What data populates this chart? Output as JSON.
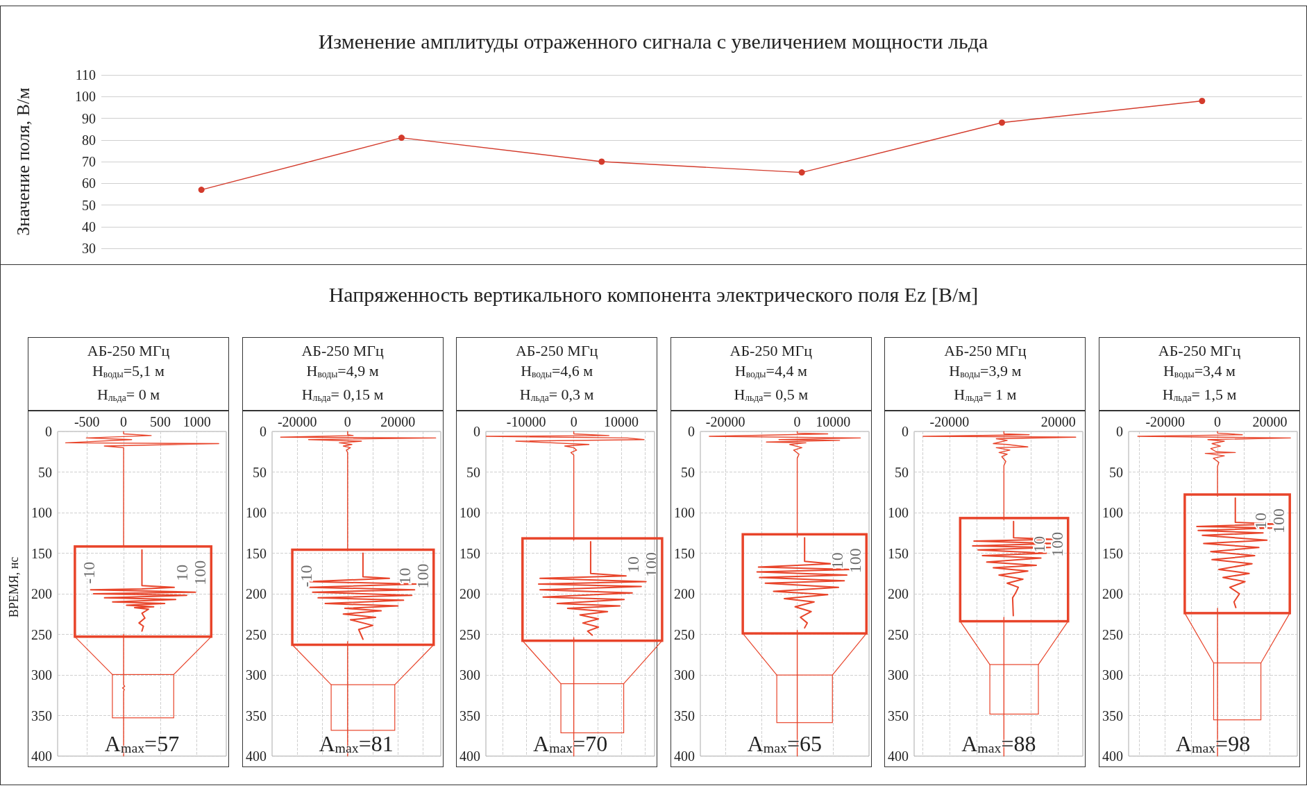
{
  "chart_data": [
    {
      "type": "line",
      "title": "Изменение амплитуды отраженного сигнала с увеличением мощности льда",
      "ylabel": "Значение поля, В/м",
      "categories": [
        null,
        null,
        null,
        null,
        null,
        null
      ],
      "series": [
        {
          "color": "#d33b2c",
          "values": [
            57,
            81,
            70,
            65,
            88,
            98
          ]
        }
      ],
      "ylim": [
        30,
        110
      ],
      "yticks": [
        30,
        40,
        50,
        60,
        70,
        80,
        90,
        100,
        110
      ],
      "grid": "y",
      "marker": "circle",
      "tick_labels": "y"
    },
    {
      "type": "other",
      "title": "Напряженность вертикального компонента электрического поля Ez [В/м]"
    },
    {
      "type": "line",
      "title": "АБ-250 МГц",
      "subtitle": "Н$_{воды}$=5,1 м\nН$_{льда}$= 0 м",
      "ylabel": "ВРЕМЯ, нс",
      "series": [
        {
          "color": "#e8442a",
          "x": [
            0,
            0,
            376,
            -508,
            110,
            -790,
            1297,
            -263,
            0,
            0,
            null,
            0,
            0,
            15,
            -15,
            10,
            0,
            0
          ],
          "values": [
            0,
            3,
            5,
            8,
            10,
            14,
            15,
            18,
            20,
            142,
            null,
            250,
            312,
            314,
            316,
            318,
            320,
            400
          ]
        },
        {
          "color": "#e8442a",
          "x": [
            250,
            250,
            690,
            250,
            -450,
            980,
            -410,
            860,
            -260,
            710,
            -150,
            560,
            40,
            410,
            150,
            340,
            250,
            290,
            210,
            270,
            250
          ],
          "values": [
            146,
            190,
            192,
            194,
            195,
            198,
            200,
            202,
            205,
            207,
            210,
            212,
            214,
            216,
            217,
            219,
            224,
            230,
            236,
            240,
            246
          ]
        }
      ],
      "xlim": [
        -900,
        1400
      ],
      "xticks": [
        -500,
        0,
        500,
        1000
      ],
      "ylim": [
        400,
        0
      ],
      "yticks": [
        0,
        50,
        100,
        150,
        200,
        250,
        300,
        350,
        400
      ],
      "grid": true,
      "marker": "none",
      "annotations": [
        "-10",
        "10",
        "100",
        "A$_{max}$=57"
      ]
    },
    {
      "type": "line",
      "title": "АБ-250 МГц",
      "subtitle": "Н$_{воды}$=4,9 м\nН$_{льда}$= 0,15 м",
      "series": [
        {
          "color": "#e8442a",
          "x": [
            0,
            0,
            2200,
            -26600,
            35000,
            -15500,
            5500,
            -3300,
            1700,
            -1700,
            1100,
            -500,
            0,
            0,
            null,
            0,
            0
          ],
          "values": [
            0,
            4,
            5,
            7,
            8,
            10,
            12,
            14,
            16,
            18,
            20,
            23,
            26,
            147,
            null,
            259,
            400
          ]
        },
        {
          "color": "#e8442a",
          "x": [
            6100,
            6100,
            16600,
            -15500,
            27700,
            -15500,
            26600,
            -13900,
            25500,
            -11700,
            22200,
            -8900,
            20000,
            -1100,
            13300,
            -1700,
            11100,
            1100,
            10000,
            4400,
            6100
          ],
          "values": [
            150,
            179,
            181,
            185,
            188,
            192,
            195,
            198,
            202,
            205,
            208,
            212,
            215,
            218,
            221,
            225,
            229,
            232,
            239,
            244,
            256
          ]
        }
      ],
      "xlim": [
        -30000,
        37000
      ],
      "xticks": [
        -20000,
        {
          "value": -10000,
          "label": null
        },
        0,
        {
          "value": 10000,
          "label": null
        },
        20000,
        {
          "value": 30000,
          "label": null
        }
      ],
      "ylim": [
        400,
        0
      ],
      "yticks": [
        0,
        50,
        100,
        150,
        200,
        250,
        300,
        350,
        400
      ],
      "grid": true,
      "marker": "none",
      "annotations": [
        "-10",
        "10",
        "100",
        "A$_{max}$=81"
      ]
    },
    {
      "type": "line",
      "title": "АБ-250 МГц",
      "subtitle": "Н$_{воды}$=4,6 м\nН$_{льда}$= 0,3 м",
      "series": [
        {
          "color": "#e8442a",
          "x": [
            0,
            0,
            7400,
            -18400,
            11300,
            14800,
            -12200,
            3200,
            -1900,
            0,
            600,
            -600,
            0,
            0,
            null,
            0,
            0
          ],
          "values": [
            0,
            3,
            5,
            6,
            8,
            10,
            12,
            16,
            18,
            20,
            23,
            26,
            29,
            134,
            null,
            254,
            400
          ]
        },
        {
          "color": "#e8442a",
          "x": [
            3550,
            3550,
            11000,
            -7100,
            15200,
            -7400,
            14200,
            -7100,
            12300,
            -6450,
            10600,
            -3500,
            9700,
            -1300,
            7100,
            1300,
            5200,
            1900,
            5200,
            2900,
            3900
          ],
          "values": [
            136,
            175,
            178,
            181,
            185,
            188,
            191,
            195,
            199,
            204,
            207,
            212,
            215,
            218,
            222,
            226,
            231,
            236,
            241,
            246,
            251
          ]
        }
      ],
      "xlim": [
        -18500,
        17000
      ],
      "xticks": [
        {
          "value": -15000,
          "label": null
        },
        -10000,
        {
          "value": -5000,
          "label": null
        },
        0,
        {
          "value": 5000,
          "label": null
        },
        10000,
        {
          "value": 15000,
          "label": null
        }
      ],
      "ylim": [
        400,
        0
      ],
      "yticks": [
        0,
        50,
        100,
        150,
        200,
        250,
        300,
        350,
        400
      ],
      "grid": true,
      "marker": "none",
      "annotations": [
        "10",
        "100",
        "A$_{max}$=70"
      ]
    },
    {
      "type": "line",
      "title": "АБ-250 МГц",
      "subtitle": "Н$_{воды}$=4,4 м\nН$_{льда}$= 0,5 м",
      "series": [
        {
          "color": "#e8442a",
          "x": [
            0,
            0,
            8500,
            -24500,
            17600,
            -5100,
            11800,
            -8600,
            2400,
            -2100,
            1300,
            -1000,
            500,
            0,
            0,
            null,
            0,
            0
          ],
          "values": [
            0,
            2,
            3,
            6,
            8,
            10,
            11,
            13,
            14,
            16,
            20,
            23,
            28,
            33,
            130,
            null,
            245,
            400
          ]
        },
        {
          "color": "#e8442a",
          "x": [
            2050,
            2050,
            9600,
            -10800,
            15300,
            -11200,
            13800,
            -10500,
            13100,
            -8900,
            11500,
            -6600,
            8500,
            -3600,
            4700,
            -600,
            3900,
            900,
            2800,
            2050
          ],
          "values": [
            131,
            160,
            163,
            167,
            170,
            173,
            177,
            180,
            184,
            187,
            192,
            197,
            201,
            206,
            210,
            216,
            222,
            229,
            236,
            242
          ]
        }
      ],
      "xlim": [
        -27000,
        20000
      ],
      "xticks": [
        -20000,
        {
          "value": -10000,
          "label": null
        },
        0,
        10000
      ],
      "ylim": [
        400,
        0
      ],
      "yticks": [
        0,
        50,
        100,
        150,
        200,
        250,
        300,
        350,
        400
      ],
      "grid": true,
      "marker": "none",
      "annotations": [
        "10",
        "100",
        "A$_{max}$=65"
      ]
    },
    {
      "type": "line",
      "title": "АБ-250 МГц",
      "subtitle": "Н$_{воды}$=3,9 м\nН$_{льда}$= 1 м",
      "series": [
        {
          "color": "#e8442a",
          "x": [
            0,
            0,
            9300,
            -29700,
            26400,
            -2800,
            1200,
            -3900,
            1200,
            8800,
            -2800,
            2200,
            -1800,
            1200,
            -800,
            700,
            0,
            0,
            null,
            0,
            0
          ],
          "values": [
            0,
            3,
            4,
            6,
            7,
            9,
            11,
            15,
            16,
            19,
            20,
            23,
            26,
            28,
            31,
            37,
            42,
            109,
            null,
            229,
            400
          ]
        },
        {
          "color": "#e8442a",
          "x": [
            3550,
            3550,
            18500,
            -11000,
            19000,
            -11500,
            17100,
            -9500,
            15600,
            -7900,
            13600,
            -6300,
            11900,
            -3900,
            8800,
            -1800,
            7000,
            1200,
            5300,
            4300,
            3200,
            3450
          ],
          "values": [
            111,
            131,
            133,
            135,
            138,
            141,
            143,
            146,
            150,
            153,
            156,
            161,
            165,
            168,
            172,
            177,
            182,
            187,
            192,
            199,
            205,
            227
          ]
        }
      ],
      "xlim": [
        -33000,
        29000
      ],
      "xticks": [
        {
          "value": -30000,
          "label": null
        },
        -20000,
        {
          "value": -10000,
          "label": null
        },
        {
          "value": 0,
          "label": null
        },
        {
          "value": 10000,
          "label": null
        },
        20000
      ],
      "ylim": [
        400,
        0
      ],
      "yticks": [
        0,
        50,
        100,
        150,
        200,
        250,
        300,
        350,
        400
      ],
      "grid": true,
      "marker": "none",
      "annotations": [
        "10",
        "100",
        "A$_{max}$=88"
      ]
    },
    {
      "type": "line",
      "title": "АБ-250 МГц",
      "subtitle": "Н$_{воды}$=3,4 м\nН$_{льда}$= 1,5 м",
      "series": [
        {
          "color": "#e8442a",
          "x": [
            0,
            0,
            9500,
            -30500,
            27900,
            -3700,
            2600,
            -2100,
            1100,
            -2600,
            -500,
            6800,
            -4700,
            2600,
            -1600,
            500,
            0,
            0,
            null,
            0,
            0
          ],
          "values": [
            0,
            2,
            4,
            6,
            8,
            10,
            12,
            15,
            18,
            21,
            25,
            26,
            27,
            30,
            33,
            38,
            43,
            80,
            null,
            218,
            400
          ]
        },
        {
          "color": "#e8442a",
          "x": [
            6800,
            6800,
            23000,
            -7900,
            21100,
            -7400,
            17400,
            -5800,
            18900,
            -5300,
            15800,
            -2600,
            14200,
            -2100,
            13200,
            500,
            12100,
            2100,
            10500,
            4700,
            8400,
            6300,
            7000
          ],
          "values": [
            82,
            112,
            114,
            117,
            119,
            122,
            125,
            128,
            134,
            138,
            143,
            148,
            153,
            158,
            163,
            170,
            175,
            180,
            185,
            192,
            200,
            210,
            217
          ]
        }
      ],
      "xlim": [
        -34000,
        30500
      ],
      "xticks": [
        {
          "value": -30000,
          "label": null
        },
        -20000,
        {
          "value": -10000,
          "label": null
        },
        0,
        {
          "value": 10000,
          "label": null
        },
        20000
      ],
      "ylim": [
        400,
        0
      ],
      "yticks": [
        0,
        50,
        100,
        150,
        200,
        250,
        300,
        350,
        400
      ],
      "grid": true,
      "marker": "none",
      "annotations": [
        "10",
        "100",
        "A$_{max}$=98"
      ]
    }
  ]
}
